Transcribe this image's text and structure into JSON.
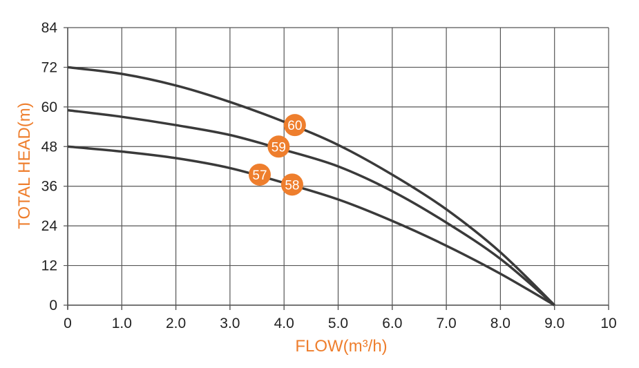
{
  "chart_data": {
    "type": "line",
    "xlabel": "FLOW(m³/h)",
    "ylabel": "TOTAL HEAD(m)",
    "xlim": [
      0,
      10
    ],
    "ylim": [
      0,
      84
    ],
    "x_ticks": [
      {
        "value": 0,
        "label": "0"
      },
      {
        "value": 1,
        "label": "1.0"
      },
      {
        "value": 2,
        "label": "2.0"
      },
      {
        "value": 3,
        "label": "3.0"
      },
      {
        "value": 4,
        "label": "4.0"
      },
      {
        "value": 5,
        "label": "5.0"
      },
      {
        "value": 6,
        "label": "6.0"
      },
      {
        "value": 7,
        "label": "7.0"
      },
      {
        "value": 8,
        "label": "8.0"
      },
      {
        "value": 9,
        "label": "9.0"
      },
      {
        "value": 10,
        "label": "10"
      }
    ],
    "y_ticks": [
      {
        "value": 0,
        "label": "0"
      },
      {
        "value": 12,
        "label": "12"
      },
      {
        "value": 24,
        "label": "24"
      },
      {
        "value": 36,
        "label": "36"
      },
      {
        "value": 48,
        "label": "48"
      },
      {
        "value": 60,
        "label": "60"
      },
      {
        "value": 72,
        "label": "72"
      },
      {
        "value": 84,
        "label": "84"
      }
    ],
    "grid": true,
    "series": [
      {
        "x": [
          0,
          1,
          2,
          3,
          4,
          5,
          6,
          7,
          8,
          9
        ],
        "y": [
          72,
          70,
          66.5,
          61.5,
          55.5,
          48.5,
          39.5,
          29,
          16,
          0
        ]
      },
      {
        "x": [
          0,
          1,
          2,
          3,
          4,
          5,
          6,
          7,
          8,
          9
        ],
        "y": [
          59,
          57,
          54.5,
          51.5,
          47,
          42,
          34.5,
          25,
          14,
          0
        ]
      },
      {
        "x": [
          0,
          1,
          2,
          3,
          4,
          5,
          6,
          7,
          8,
          9
        ],
        "y": [
          48,
          46.5,
          44.5,
          41.5,
          37,
          32,
          25.5,
          18,
          9.5,
          0
        ]
      }
    ],
    "annotations": [
      {
        "text": "60",
        "x": 4.2,
        "y": 54.5
      },
      {
        "text": "59",
        "x": 3.9,
        "y": 48
      },
      {
        "text": "57",
        "x": 3.55,
        "y": 39.5
      },
      {
        "text": "58",
        "x": 4.15,
        "y": 36.5
      }
    ],
    "colors": {
      "line": "#3a3a3a",
      "grid": "#555555",
      "accent": "#ee7e2d",
      "tick_text": "#222222"
    }
  }
}
